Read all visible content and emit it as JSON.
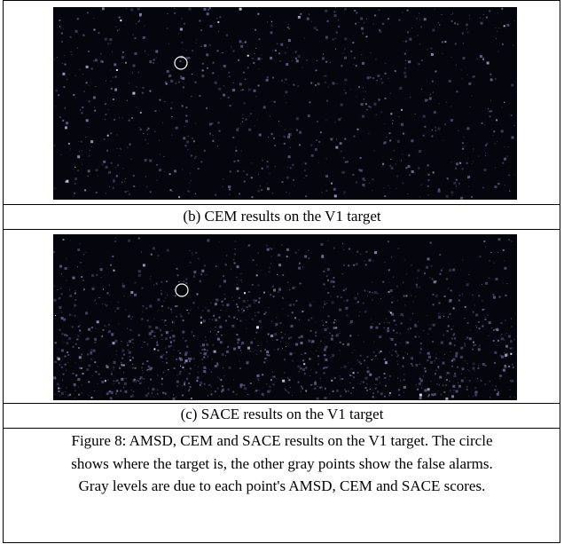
{
  "figure": {
    "panels": [
      {
        "caption": "(b) CEM results on the V1 target"
      },
      {
        "caption": "(c) SACE results on the V1 target"
      }
    ],
    "caption": [
      "Figure 8: AMSD, CEM and SACE results on the V1 target. The circle",
      "shows where the target is, the other gray points show the false alarms.",
      "Gray levels are due to each point's AMSD, CEM and SACE scores."
    ]
  }
}
